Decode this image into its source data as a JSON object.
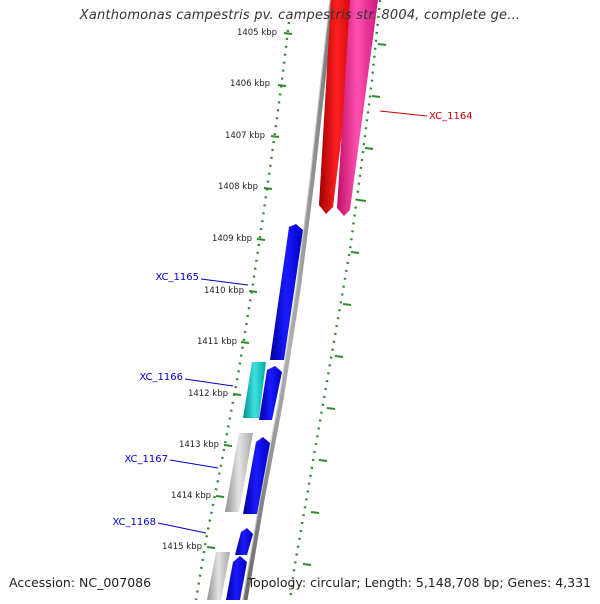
{
  "title": "Xanthomonas campestris pv. campestris str. 8004, complete ge...",
  "accession": "Accession: NC_007086",
  "summary": "Topology: circular; Length: 5,148,708 bp; Genes: 4,331",
  "ticks": [
    "1405 kbp",
    "1406 kbp",
    "1407 kbp",
    "1408 kbp",
    "1409 kbp",
    "1410 kbp",
    "1411 kbp",
    "1412 kbp",
    "1413 kbp",
    "1414 kbp",
    "1415 kbp"
  ],
  "gene_labels": {
    "xc1164": "XC_1164",
    "xc1165": "XC_1165",
    "xc1166": "XC_1166",
    "xc1167": "XC_1167",
    "xc1168": "XC_1168"
  },
  "colors": {
    "backbone": "#8a8a8a",
    "tick_dots": "#2e8b2e",
    "red_gene": "#ff0000",
    "pink_gene": "#ff1493",
    "blue_gene": "#0000ee",
    "cyan_gene": "#10c8c8",
    "gray_gene": "#b8b8b8",
    "label_red": "#cc0000",
    "label_blue": "#0000cc"
  }
}
